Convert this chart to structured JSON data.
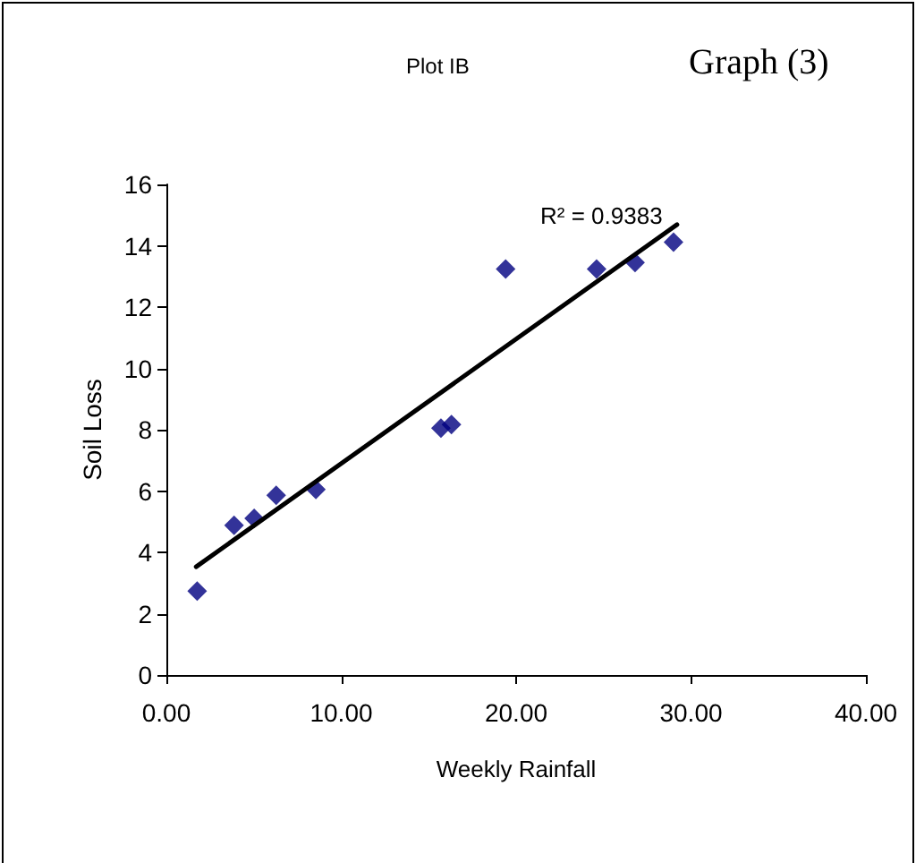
{
  "chart_data": {
    "type": "scatter",
    "title": "Plot IB",
    "subtitle": "Graph (3)",
    "xlabel": "Weekly Rainfall",
    "ylabel": "Soil Loss",
    "annotations": [
      "R² = 0.9383"
    ],
    "series": [
      {
        "marker": "diamond",
        "color": "#000080",
        "x": [
          1.76,
          3.87,
          5.02,
          6.28,
          8.55,
          15.7,
          16.3,
          19.4,
          24.6,
          26.8,
          29.0
        ],
        "values": [
          2.74,
          4.88,
          5.11,
          5.86,
          6.05,
          8.05,
          8.17,
          13.24,
          13.24,
          13.45,
          14.12
        ]
      },
      {
        "type": "line",
        "marker": "none",
        "color": "#000000",
        "x": [
          1.7,
          29.2
        ],
        "values": [
          3.53,
          14.69
        ]
      }
    ],
    "xlim": [
      0,
      40
    ],
    "xticks": [
      {
        "value": 0,
        "label": "0.00"
      },
      {
        "value": 10,
        "label": "10.00"
      },
      {
        "value": 20,
        "label": "20.00"
      },
      {
        "value": 30,
        "label": "30.00"
      },
      {
        "value": 40,
        "label": "40.00"
      }
    ],
    "ylim": [
      0,
      16
    ],
    "yticks": [
      0,
      2,
      4,
      6,
      8,
      10,
      12,
      14,
      16
    ],
    "grid": false,
    "line_style": "solid"
  }
}
